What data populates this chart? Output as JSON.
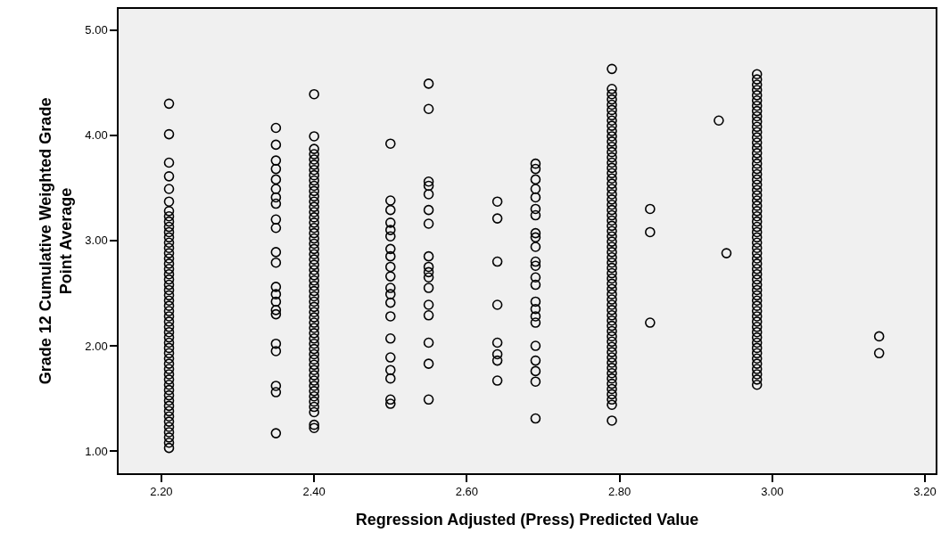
{
  "chart_data": {
    "type": "scatter",
    "xlabel": "Regression Adjusted (Press) Predicted Value",
    "ylabel": "Grade 12 Cumulative Weighted Grade\nPoint Average",
    "xlim": [
      2.144,
      3.214
    ],
    "ylim": [
      0.79,
      5.2
    ],
    "xticks": [
      {
        "value": 2.2,
        "label": "2.20"
      },
      {
        "value": 2.4,
        "label": "2.40"
      },
      {
        "value": 2.6,
        "label": "2.60"
      },
      {
        "value": 2.8,
        "label": "2.80"
      },
      {
        "value": 3.0,
        "label": "3.00"
      },
      {
        "value": 3.2,
        "label": "3.20"
      }
    ],
    "yticks": [
      {
        "value": 1,
        "label": "1.00"
      },
      {
        "value": 2,
        "label": "2.00"
      },
      {
        "value": 3,
        "label": "3.00"
      },
      {
        "value": 4,
        "label": "4.00"
      },
      {
        "value": 5,
        "label": "5.00"
      }
    ],
    "grid": false,
    "marker": "circle",
    "series": [
      {
        "color": "#000000",
        "x": [
          2.21,
          2.21,
          2.21,
          2.21,
          2.21,
          2.21,
          2.21,
          2.21,
          2.21,
          2.21,
          2.21,
          2.21,
          2.21,
          2.21,
          2.21,
          2.21,
          2.21,
          2.21,
          2.21,
          2.21,
          2.21,
          2.21,
          2.21,
          2.21,
          2.21,
          2.21,
          2.21,
          2.21,
          2.21,
          2.21,
          2.21,
          2.21,
          2.21,
          2.21,
          2.21,
          2.21,
          2.21,
          2.21,
          2.21,
          2.21,
          2.21,
          2.21,
          2.21,
          2.21,
          2.21,
          2.21,
          2.21,
          2.21,
          2.21,
          2.21,
          2.21,
          2.21
        ],
        "values": [
          4.3,
          4.01,
          3.74,
          3.61,
          3.49,
          3.37,
          3.28,
          3.23,
          3.18,
          3.13,
          3.08,
          3.03,
          2.98,
          2.93,
          2.88,
          2.83,
          2.78,
          2.73,
          2.68,
          2.63,
          2.58,
          2.53,
          2.48,
          2.43,
          2.38,
          2.33,
          2.28,
          2.23,
          2.18,
          2.13,
          2.08,
          2.03,
          1.98,
          1.93,
          1.88,
          1.83,
          1.78,
          1.73,
          1.68,
          1.63,
          1.58,
          1.53,
          1.48,
          1.43,
          1.38,
          1.33,
          1.28,
          1.23,
          1.18,
          1.13,
          1.08,
          1.03
        ]
      },
      {
        "color": "#000000",
        "x": [
          2.35,
          2.35,
          2.35,
          2.35,
          2.35,
          2.35,
          2.35,
          2.35,
          2.35,
          2.35,
          2.35,
          2.35,
          2.35,
          2.35,
          2.35,
          2.35,
          2.35,
          2.35,
          2.35,
          2.35,
          2.35,
          2.35
        ],
        "values": [
          4.07,
          3.91,
          3.76,
          3.68,
          3.58,
          3.49,
          3.41,
          3.35,
          3.2,
          3.12,
          2.89,
          2.79,
          2.56,
          2.49,
          2.42,
          2.34,
          2.3,
          2.02,
          1.95,
          1.62,
          1.56,
          1.17
        ]
      },
      {
        "color": "#000000",
        "x": [
          2.4,
          2.4,
          2.4,
          2.4,
          2.4,
          2.4,
          2.4,
          2.4,
          2.4,
          2.4,
          2.4,
          2.4,
          2.4,
          2.4,
          2.4,
          2.4,
          2.4,
          2.4,
          2.4,
          2.4,
          2.4,
          2.4,
          2.4,
          2.4,
          2.4,
          2.4,
          2.4,
          2.4,
          2.4,
          2.4,
          2.4,
          2.4,
          2.4,
          2.4,
          2.4,
          2.4,
          2.4,
          2.4,
          2.4,
          2.4,
          2.4,
          2.4,
          2.4,
          2.4,
          2.4,
          2.4,
          2.4,
          2.4,
          2.4,
          2.4,
          2.4,
          2.4,
          2.4,
          2.4,
          2.4
        ],
        "values": [
          4.39,
          3.99,
          3.87,
          3.82,
          3.77,
          3.72,
          3.67,
          3.62,
          3.57,
          3.52,
          3.47,
          3.42,
          3.37,
          3.32,
          3.27,
          3.22,
          3.17,
          3.12,
          3.07,
          3.02,
          2.97,
          2.92,
          2.87,
          2.82,
          2.77,
          2.72,
          2.67,
          2.62,
          2.57,
          2.52,
          2.47,
          2.42,
          2.37,
          2.32,
          2.27,
          2.22,
          2.17,
          2.12,
          2.07,
          2.02,
          1.97,
          1.92,
          1.87,
          1.82,
          1.77,
          1.72,
          1.67,
          1.62,
          1.57,
          1.52,
          1.47,
          1.42,
          1.37,
          1.25,
          1.22
        ]
      },
      {
        "color": "#000000",
        "x": [
          2.5,
          2.5,
          2.5,
          2.5,
          2.5,
          2.5,
          2.5,
          2.5,
          2.5,
          2.5,
          2.5,
          2.5,
          2.5,
          2.5,
          2.5,
          2.5,
          2.5,
          2.5,
          2.5,
          2.5
        ],
        "values": [
          3.92,
          3.38,
          3.29,
          3.17,
          3.1,
          3.04,
          2.92,
          2.85,
          2.75,
          2.66,
          2.55,
          2.49,
          2.41,
          2.28,
          2.07,
          1.89,
          1.77,
          1.69,
          1.49,
          1.45
        ]
      },
      {
        "color": "#000000",
        "x": [
          2.55,
          2.55,
          2.55,
          2.55,
          2.55,
          2.55,
          2.55,
          2.55,
          2.55,
          2.55,
          2.55,
          2.55,
          2.55,
          2.55,
          2.55,
          2.55,
          2.55
        ],
        "values": [
          4.49,
          4.25,
          3.56,
          3.52,
          3.44,
          3.29,
          3.16,
          2.85,
          2.75,
          2.7,
          2.65,
          2.55,
          2.39,
          2.29,
          2.03,
          1.83,
          1.49
        ]
      },
      {
        "color": "#000000",
        "x": [
          2.64,
          2.64,
          2.64,
          2.64,
          2.64,
          2.64,
          2.64,
          2.64
        ],
        "values": [
          3.37,
          3.21,
          2.8,
          2.39,
          2.03,
          1.92,
          1.86,
          1.67
        ]
      },
      {
        "color": "#000000",
        "x": [
          2.69,
          2.69,
          2.69,
          2.69,
          2.69,
          2.69,
          2.69,
          2.69,
          2.69,
          2.69,
          2.69,
          2.69,
          2.69,
          2.69,
          2.69,
          2.69,
          2.69,
          2.69,
          2.69,
          2.69,
          2.69,
          2.69,
          2.69
        ],
        "values": [
          3.73,
          3.68,
          3.58,
          3.49,
          3.41,
          3.3,
          3.24,
          3.07,
          3.03,
          2.94,
          2.8,
          2.76,
          2.65,
          2.58,
          2.42,
          2.35,
          2.28,
          2.22,
          2.0,
          1.86,
          1.76,
          1.66,
          1.31
        ]
      },
      {
        "color": "#000000",
        "x": [
          2.79,
          2.79,
          2.79,
          2.79,
          2.79,
          2.79,
          2.79,
          2.79,
          2.79,
          2.79,
          2.79,
          2.79,
          2.79,
          2.79,
          2.79,
          2.79,
          2.79,
          2.79,
          2.79,
          2.79,
          2.79,
          2.79,
          2.79,
          2.79,
          2.79,
          2.79,
          2.79,
          2.79,
          2.79,
          2.79,
          2.79,
          2.79,
          2.79,
          2.79,
          2.79,
          2.79,
          2.79,
          2.79,
          2.79,
          2.79,
          2.79,
          2.79,
          2.79,
          2.79,
          2.79,
          2.79,
          2.79,
          2.79,
          2.79,
          2.79,
          2.79,
          2.79,
          2.79,
          2.79,
          2.79,
          2.79,
          2.79,
          2.79,
          2.79,
          2.79,
          2.79,
          2.79,
          2.79
        ],
        "values": [
          4.63,
          4.44,
          4.39,
          4.34,
          4.29,
          4.24,
          4.19,
          4.14,
          4.09,
          4.04,
          3.99,
          3.94,
          3.89,
          3.84,
          3.79,
          3.74,
          3.69,
          3.64,
          3.59,
          3.54,
          3.49,
          3.44,
          3.39,
          3.34,
          3.29,
          3.24,
          3.19,
          3.14,
          3.09,
          3.04,
          2.99,
          2.94,
          2.89,
          2.84,
          2.79,
          2.74,
          2.69,
          2.64,
          2.59,
          2.54,
          2.49,
          2.44,
          2.39,
          2.34,
          2.29,
          2.24,
          2.19,
          2.14,
          2.09,
          2.04,
          1.99,
          1.94,
          1.89,
          1.84,
          1.79,
          1.74,
          1.69,
          1.64,
          1.59,
          1.54,
          1.49,
          1.44,
          1.29
        ]
      },
      {
        "color": "#000000",
        "x": [
          2.84,
          2.84,
          2.84
        ],
        "values": [
          3.3,
          3.08,
          2.22
        ]
      },
      {
        "color": "#000000",
        "x": [
          2.93,
          2.94
        ],
        "values": [
          4.14,
          2.88
        ]
      },
      {
        "color": "#000000",
        "x": [
          2.98,
          2.98,
          2.98,
          2.98,
          2.98,
          2.98,
          2.98,
          2.98,
          2.98,
          2.98,
          2.98,
          2.98,
          2.98,
          2.98,
          2.98,
          2.98,
          2.98,
          2.98,
          2.98,
          2.98,
          2.98,
          2.98,
          2.98,
          2.98,
          2.98,
          2.98,
          2.98,
          2.98,
          2.98,
          2.98,
          2.98,
          2.98,
          2.98,
          2.98,
          2.98,
          2.98,
          2.98,
          2.98,
          2.98,
          2.98,
          2.98,
          2.98,
          2.98,
          2.98,
          2.98,
          2.98,
          2.98,
          2.98,
          2.98,
          2.98,
          2.98,
          2.98,
          2.98,
          2.98,
          2.98,
          2.98,
          2.98,
          2.98,
          2.98,
          2.98
        ],
        "values": [
          4.58,
          4.53,
          4.48,
          4.43,
          4.38,
          4.33,
          4.28,
          4.23,
          4.18,
          4.13,
          4.08,
          4.03,
          3.98,
          3.93,
          3.88,
          3.83,
          3.78,
          3.73,
          3.68,
          3.63,
          3.58,
          3.53,
          3.48,
          3.43,
          3.38,
          3.33,
          3.28,
          3.23,
          3.18,
          3.13,
          3.08,
          3.03,
          2.98,
          2.93,
          2.88,
          2.83,
          2.78,
          2.73,
          2.68,
          2.63,
          2.58,
          2.53,
          2.48,
          2.43,
          2.38,
          2.33,
          2.28,
          2.23,
          2.18,
          2.13,
          2.08,
          2.03,
          1.98,
          1.93,
          1.88,
          1.83,
          1.78,
          1.73,
          1.68,
          1.63
        ]
      },
      {
        "color": "#000000",
        "x": [
          3.14,
          3.14
        ],
        "values": [
          2.09,
          1.93
        ]
      }
    ]
  }
}
